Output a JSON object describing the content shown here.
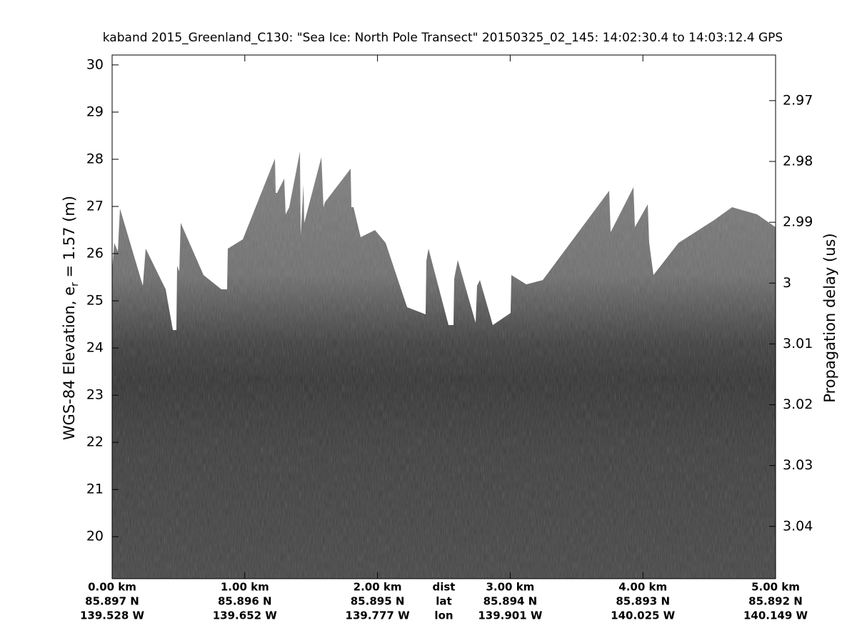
{
  "chart_data": {
    "type": "echogram",
    "title": "kaband 2015_Greenland_C130: \"Sea Ice: North Pole Transect\"  20150325_02_145: 14:02:30.4 to 14:03:12.4 GPS",
    "ylabel": [
      "WGS-84 Elevation, e",
      "r",
      " = 1.57 (m)"
    ],
    "y2label": "Propagation delay (us)",
    "ylim": [
      19.11,
      30.21
    ],
    "yticks": [
      20,
      21,
      22,
      23,
      24,
      25,
      26,
      27,
      28,
      29,
      30
    ],
    "y2lim": [
      2.9625,
      3.0486
    ],
    "y2ticks": [
      2.97,
      2.98,
      2.99,
      3,
      3.01,
      3.02,
      3.03,
      3.04
    ],
    "y2reverse": true,
    "xlim": [
      0,
      5
    ],
    "xticks": [
      {
        "value": 0,
        "label": "0.00 km"
      },
      {
        "value": 1,
        "label": "1.00 km"
      },
      {
        "value": 2,
        "label": "2.00 km"
      },
      {
        "value": 3,
        "label": "3.00 km"
      },
      {
        "value": 4,
        "label": "4.00 km"
      },
      {
        "value": 5,
        "label": "5.00 km"
      }
    ],
    "lat_labels": [
      "85.897 N",
      "85.896 N",
      "85.895 N",
      "85.894 N",
      "85.893 N",
      "85.892 N"
    ],
    "lon_labels": [
      "139.528 W",
      "139.652 W",
      "139.777 W",
      "139.901 W",
      "140.025 W",
      "140.149 W"
    ],
    "row_labels": [
      "dist",
      "lat",
      "lon"
    ],
    "row_label_x": 2.5
  }
}
